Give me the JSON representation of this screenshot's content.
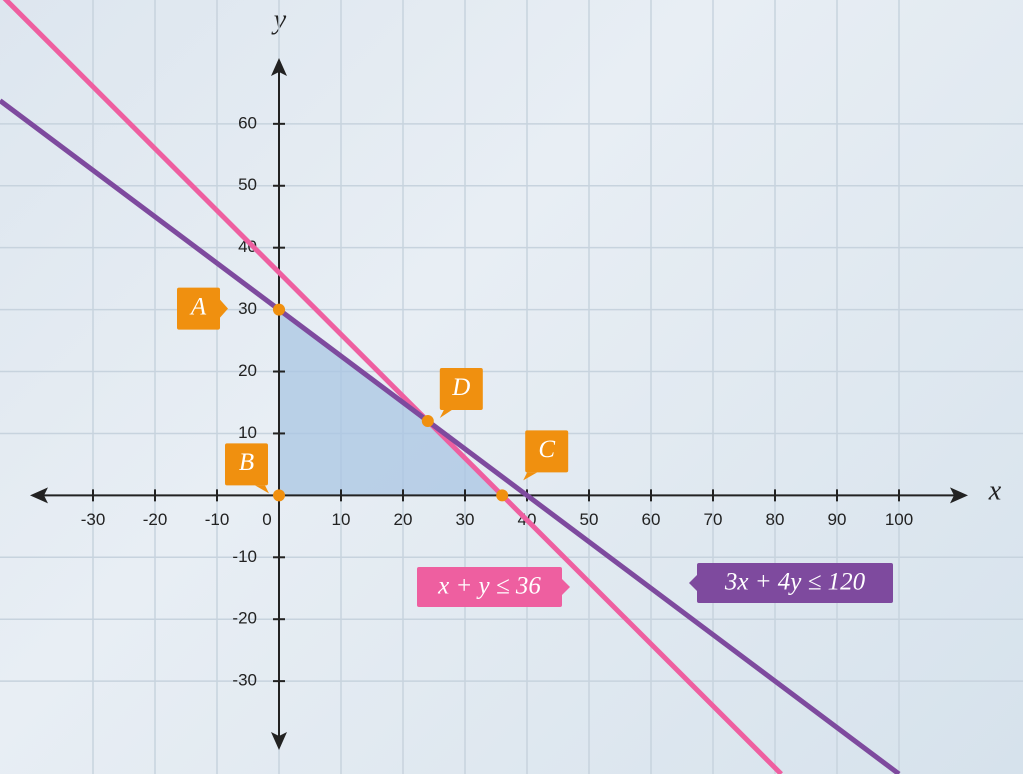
{
  "chart_data": {
    "type": "line",
    "x_label": "x",
    "y_label": "y",
    "xlim": [
      -45,
      120
    ],
    "ylim": [
      -45,
      80
    ],
    "xticks": [
      -30,
      -20,
      -10,
      0,
      10,
      20,
      30,
      40,
      50,
      60,
      70,
      80,
      90,
      100
    ],
    "yticks": [
      -30,
      -20,
      -10,
      10,
      20,
      30,
      40,
      50,
      60
    ],
    "grid": true,
    "series": [
      {
        "name": "x + y ≤ 36",
        "color": "#ee5fa0",
        "x": [
          -45,
          81
        ],
        "values": [
          81,
          -45
        ]
      },
      {
        "name": "3x + 4y ≤ 120",
        "color": "#7e4a9e",
        "x": [
          -45,
          100
        ],
        "values": [
          63.75,
          -45
        ]
      }
    ],
    "region": {
      "color": "#a9c6e3",
      "x": [
        0,
        0,
        36,
        24
      ],
      "values": [
        30,
        0,
        0,
        12
      ]
    },
    "points": {
      "color": "#f0900f",
      "labels": [
        "A",
        "B",
        "C",
        "D"
      ],
      "x": [
        0,
        0,
        36,
        24
      ],
      "values": [
        30,
        0,
        0,
        12
      ]
    }
  }
}
